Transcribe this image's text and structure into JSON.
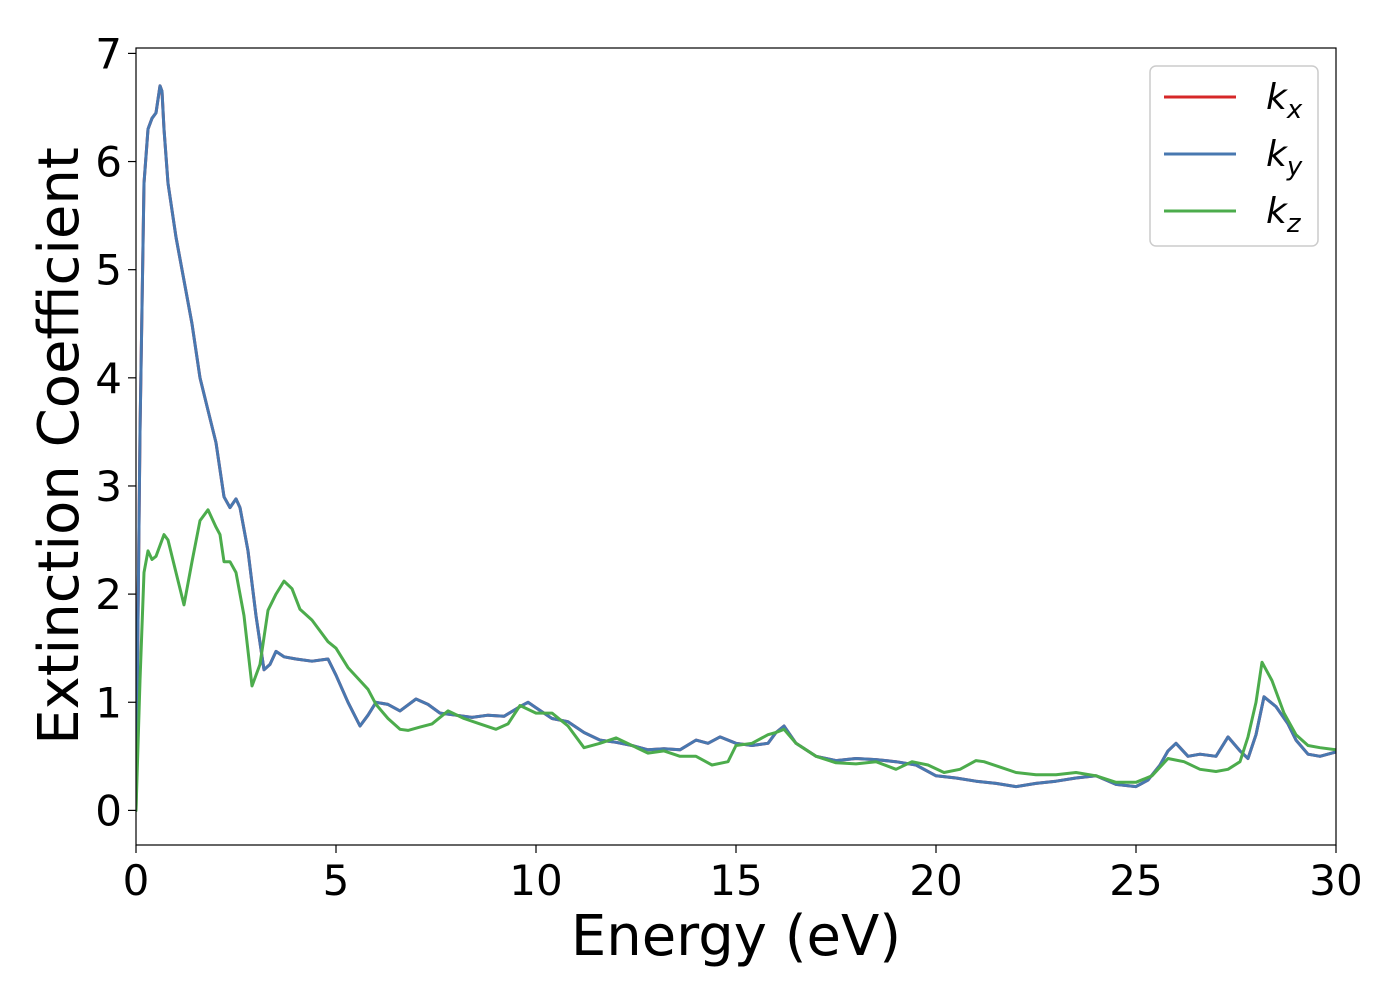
{
  "chart_data": {
    "type": "line",
    "xlabel": "Energy (eV)",
    "ylabel": "Extinction Coefficient",
    "xlim": [
      0,
      30
    ],
    "ylim": [
      -0.32,
      7.05
    ],
    "xticks": [
      0,
      5,
      10,
      15,
      20,
      25,
      30
    ],
    "yticks": [
      0,
      1,
      2,
      3,
      4,
      5,
      6,
      7
    ],
    "grid": false,
    "legend_position": "top-right",
    "series": [
      {
        "name": "k",
        "subscript": "x",
        "color": "#d62728",
        "x": [
          0,
          0.1,
          0.2,
          0.3,
          0.4,
          0.5,
          0.6,
          0.65,
          0.7,
          0.8,
          1.0,
          1.2,
          1.4,
          1.6,
          1.8,
          2.0,
          2.2,
          2.35,
          2.5,
          2.6,
          2.8,
          3.0,
          3.2,
          3.35,
          3.5,
          3.7,
          4.0,
          4.4,
          4.8,
          5.0,
          5.3,
          5.6,
          5.8,
          6.0,
          6.3,
          6.6,
          7.0,
          7.3,
          7.6,
          8.0,
          8.4,
          8.8,
          9.2,
          9.6,
          9.8,
          10.0,
          10.4,
          10.8,
          11.2,
          11.6,
          12.0,
          12.4,
          12.8,
          13.2,
          13.6,
          14.0,
          14.3,
          14.6,
          15.0,
          15.4,
          15.8,
          16.0,
          16.2,
          16.5,
          17.0,
          17.5,
          18.0,
          18.5,
          19.0,
          19.5,
          20.0,
          20.5,
          21.0,
          21.5,
          22.0,
          22.5,
          23.0,
          23.5,
          24.0,
          24.5,
          25.0,
          25.3,
          25.6,
          25.8,
          26.0,
          26.3,
          26.6,
          27.0,
          27.3,
          27.6,
          27.8,
          28.0,
          28.2,
          28.5,
          28.8,
          29.0,
          29.3,
          29.6,
          30.0
        ],
        "y": [
          0.0,
          3.5,
          5.8,
          6.3,
          6.4,
          6.45,
          6.7,
          6.65,
          6.3,
          5.8,
          5.3,
          4.9,
          4.5,
          4.0,
          3.7,
          3.4,
          2.9,
          2.8,
          2.88,
          2.8,
          2.4,
          1.8,
          1.3,
          1.35,
          1.47,
          1.42,
          1.4,
          1.38,
          1.4,
          1.25,
          1.0,
          0.78,
          0.88,
          1.0,
          0.98,
          0.92,
          1.03,
          0.98,
          0.9,
          0.88,
          0.86,
          0.88,
          0.87,
          0.96,
          1.0,
          0.95,
          0.85,
          0.82,
          0.72,
          0.65,
          0.63,
          0.6,
          0.56,
          0.57,
          0.56,
          0.65,
          0.62,
          0.68,
          0.62,
          0.6,
          0.62,
          0.72,
          0.78,
          0.62,
          0.5,
          0.46,
          0.48,
          0.47,
          0.45,
          0.42,
          0.32,
          0.3,
          0.27,
          0.25,
          0.22,
          0.25,
          0.27,
          0.3,
          0.32,
          0.24,
          0.22,
          0.28,
          0.42,
          0.55,
          0.62,
          0.5,
          0.52,
          0.5,
          0.68,
          0.55,
          0.48,
          0.7,
          1.05,
          0.96,
          0.8,
          0.65,
          0.52,
          0.5,
          0.54
        ]
      },
      {
        "name": "k",
        "subscript": "y",
        "color": "#4878b0",
        "x": [
          0,
          0.1,
          0.2,
          0.3,
          0.4,
          0.5,
          0.6,
          0.65,
          0.7,
          0.8,
          1.0,
          1.2,
          1.4,
          1.6,
          1.8,
          2.0,
          2.2,
          2.35,
          2.5,
          2.6,
          2.8,
          3.0,
          3.2,
          3.35,
          3.5,
          3.7,
          4.0,
          4.4,
          4.8,
          5.0,
          5.3,
          5.6,
          5.8,
          6.0,
          6.3,
          6.6,
          7.0,
          7.3,
          7.6,
          8.0,
          8.4,
          8.8,
          9.2,
          9.6,
          9.8,
          10.0,
          10.4,
          10.8,
          11.2,
          11.6,
          12.0,
          12.4,
          12.8,
          13.2,
          13.6,
          14.0,
          14.3,
          14.6,
          15.0,
          15.4,
          15.8,
          16.0,
          16.2,
          16.5,
          17.0,
          17.5,
          18.0,
          18.5,
          19.0,
          19.5,
          20.0,
          20.5,
          21.0,
          21.5,
          22.0,
          22.5,
          23.0,
          23.5,
          24.0,
          24.5,
          25.0,
          25.3,
          25.6,
          25.8,
          26.0,
          26.3,
          26.6,
          27.0,
          27.3,
          27.6,
          27.8,
          28.0,
          28.2,
          28.5,
          28.8,
          29.0,
          29.3,
          29.6,
          30.0
        ],
        "y": [
          0.0,
          3.5,
          5.8,
          6.3,
          6.4,
          6.45,
          6.7,
          6.65,
          6.3,
          5.8,
          5.3,
          4.9,
          4.5,
          4.0,
          3.7,
          3.4,
          2.9,
          2.8,
          2.88,
          2.8,
          2.4,
          1.8,
          1.3,
          1.35,
          1.47,
          1.42,
          1.4,
          1.38,
          1.4,
          1.25,
          1.0,
          0.78,
          0.88,
          1.0,
          0.98,
          0.92,
          1.03,
          0.98,
          0.9,
          0.88,
          0.86,
          0.88,
          0.87,
          0.96,
          1.0,
          0.95,
          0.85,
          0.82,
          0.72,
          0.65,
          0.63,
          0.6,
          0.56,
          0.57,
          0.56,
          0.65,
          0.62,
          0.68,
          0.62,
          0.6,
          0.62,
          0.72,
          0.78,
          0.62,
          0.5,
          0.46,
          0.48,
          0.47,
          0.45,
          0.42,
          0.32,
          0.3,
          0.27,
          0.25,
          0.22,
          0.25,
          0.27,
          0.3,
          0.32,
          0.24,
          0.22,
          0.28,
          0.42,
          0.55,
          0.62,
          0.5,
          0.52,
          0.5,
          0.68,
          0.55,
          0.48,
          0.7,
          1.05,
          0.96,
          0.8,
          0.65,
          0.52,
          0.5,
          0.54
        ]
      },
      {
        "name": "k",
        "subscript": "z",
        "color": "#4cac4c",
        "x": [
          0,
          0.1,
          0.2,
          0.3,
          0.4,
          0.5,
          0.7,
          0.8,
          1.0,
          1.2,
          1.4,
          1.6,
          1.8,
          2.0,
          2.1,
          2.2,
          2.35,
          2.5,
          2.7,
          2.9,
          3.1,
          3.3,
          3.5,
          3.7,
          3.9,
          4.1,
          4.4,
          4.8,
          5.0,
          5.3,
          5.6,
          5.8,
          6.0,
          6.3,
          6.6,
          6.8,
          7.1,
          7.4,
          7.8,
          8.2,
          8.6,
          9.0,
          9.3,
          9.6,
          10.0,
          10.4,
          10.8,
          11.2,
          11.6,
          12.0,
          12.4,
          12.8,
          13.2,
          13.6,
          14.0,
          14.4,
          14.8,
          15.0,
          15.4,
          15.8,
          16.0,
          16.2,
          16.5,
          17.0,
          17.5,
          18.0,
          18.5,
          19.0,
          19.4,
          19.8,
          20.2,
          20.6,
          21.0,
          21.2,
          21.6,
          22.0,
          22.5,
          23.0,
          23.5,
          24.0,
          24.5,
          25.0,
          25.4,
          25.8,
          26.2,
          26.6,
          27.0,
          27.3,
          27.6,
          27.8,
          28.0,
          28.15,
          28.4,
          28.7,
          29.0,
          29.3,
          29.6,
          30.0
        ],
        "y": [
          0.0,
          1.2,
          2.2,
          2.4,
          2.32,
          2.35,
          2.55,
          2.5,
          2.2,
          1.9,
          2.3,
          2.68,
          2.78,
          2.62,
          2.55,
          2.3,
          2.3,
          2.2,
          1.8,
          1.15,
          1.35,
          1.85,
          2.0,
          2.12,
          2.05,
          1.86,
          1.76,
          1.56,
          1.5,
          1.32,
          1.2,
          1.12,
          0.98,
          0.85,
          0.75,
          0.74,
          0.77,
          0.8,
          0.92,
          0.85,
          0.8,
          0.75,
          0.8,
          0.97,
          0.9,
          0.9,
          0.78,
          0.58,
          0.62,
          0.67,
          0.6,
          0.53,
          0.55,
          0.5,
          0.5,
          0.42,
          0.45,
          0.6,
          0.62,
          0.7,
          0.72,
          0.75,
          0.62,
          0.5,
          0.44,
          0.43,
          0.45,
          0.38,
          0.45,
          0.42,
          0.35,
          0.38,
          0.46,
          0.45,
          0.4,
          0.35,
          0.33,
          0.33,
          0.35,
          0.32,
          0.26,
          0.26,
          0.32,
          0.48,
          0.45,
          0.38,
          0.36,
          0.38,
          0.45,
          0.68,
          1.0,
          1.37,
          1.2,
          0.9,
          0.7,
          0.6,
          0.58,
          0.56
        ]
      }
    ]
  }
}
